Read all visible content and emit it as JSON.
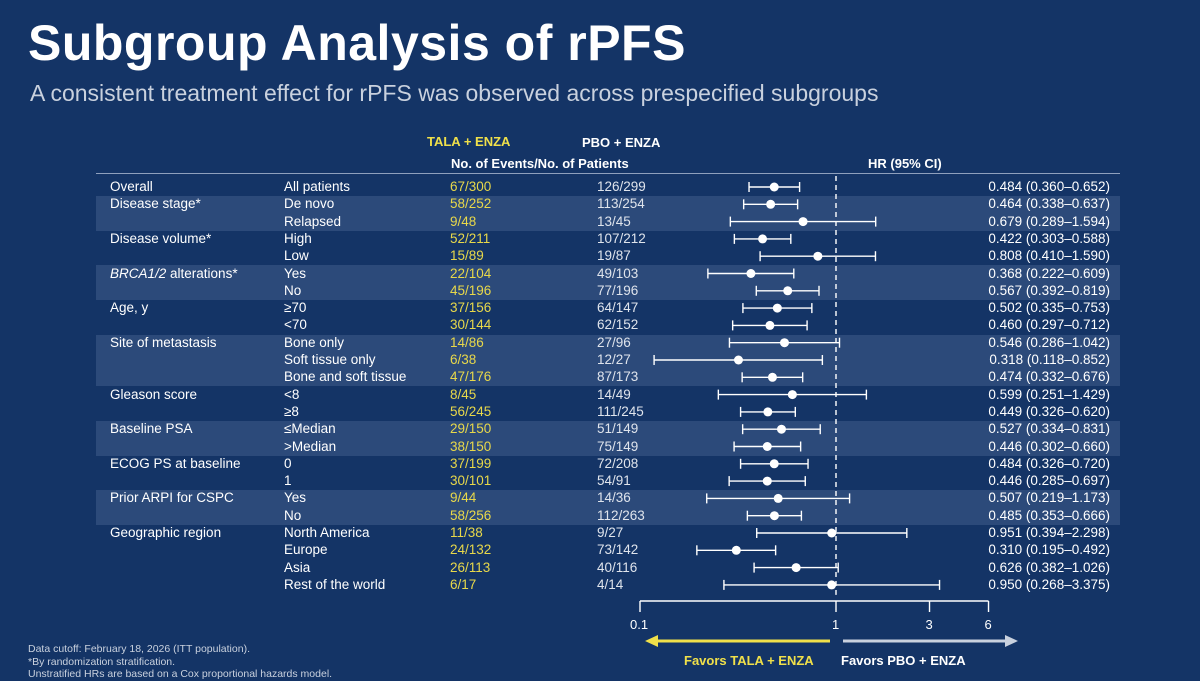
{
  "title": "Subgroup Analysis of rPFS",
  "subtitle": "A consistent treatment effect for rPFS was observed across prespecified subgroups",
  "headers": {
    "tala": "TALA + ENZA",
    "pbo": "PBO + ENZA",
    "events": "No. of Events/No. of Patients",
    "hr": "HR (95% CI)"
  },
  "colors": {
    "background": "#143466",
    "band": "#2c4a7a",
    "tala_yellow": "#e8d84a",
    "marker": "#ffffff"
  },
  "chart_data": {
    "type": "forest",
    "x_scale": "log",
    "xlim": [
      0.1,
      6
    ],
    "x_ticks": [
      "0.1",
      "1",
      "3",
      "6"
    ],
    "reference_line": 1,
    "rows": [
      {
        "subgroup": "Overall",
        "category": "All patients",
        "tala": "67/300",
        "pbo": "126/299",
        "hr": 0.484,
        "lo": 0.36,
        "hi": 0.652,
        "label": "0.484 (0.360–0.652)",
        "band": false
      },
      {
        "subgroup": "Disease stage*",
        "category": "De novo",
        "tala": "58/252",
        "pbo": "113/254",
        "hr": 0.464,
        "lo": 0.338,
        "hi": 0.637,
        "label": "0.464 (0.338–0.637)",
        "band": true
      },
      {
        "subgroup": "",
        "category": "Relapsed",
        "tala": "9/48",
        "pbo": "13/45",
        "hr": 0.679,
        "lo": 0.289,
        "hi": 1.594,
        "label": "0.679 (0.289–1.594)",
        "band": true
      },
      {
        "subgroup": "Disease volume*",
        "category": "High",
        "tala": "52/211",
        "pbo": "107/212",
        "hr": 0.422,
        "lo": 0.303,
        "hi": 0.588,
        "label": "0.422 (0.303–0.588)",
        "band": false
      },
      {
        "subgroup": "",
        "category": "Low",
        "tala": "15/89",
        "pbo": "19/87",
        "hr": 0.808,
        "lo": 0.41,
        "hi": 1.59,
        "label": "0.808 (0.410–1.590)",
        "band": false
      },
      {
        "subgroup": "BRCA1/2 alterations*",
        "category": "Yes",
        "tala": "22/104",
        "pbo": "49/103",
        "hr": 0.368,
        "lo": 0.222,
        "hi": 0.609,
        "label": "0.368 (0.222–0.609)",
        "band": true,
        "italic": true
      },
      {
        "subgroup": "",
        "category": "No",
        "tala": "45/196",
        "pbo": "77/196",
        "hr": 0.567,
        "lo": 0.392,
        "hi": 0.819,
        "label": "0.567 (0.392–0.819)",
        "band": true
      },
      {
        "subgroup": "Age, y",
        "category": "≥70",
        "tala": "37/156",
        "pbo": "64/147",
        "hr": 0.502,
        "lo": 0.335,
        "hi": 0.753,
        "label": "0.502 (0.335–0.753)",
        "band": false
      },
      {
        "subgroup": "",
        "category": "<70",
        "tala": "30/144",
        "pbo": "62/152",
        "hr": 0.46,
        "lo": 0.297,
        "hi": 0.712,
        "label": "0.460 (0.297–0.712)",
        "band": false
      },
      {
        "subgroup": "Site of metastasis",
        "category": "Bone only",
        "tala": "14/86",
        "pbo": "27/96",
        "hr": 0.546,
        "lo": 0.286,
        "hi": 1.042,
        "label": "0.546 (0.286–1.042)",
        "band": true
      },
      {
        "subgroup": "",
        "category": "Soft tissue only",
        "tala": "6/38",
        "pbo": "12/27",
        "hr": 0.318,
        "lo": 0.118,
        "hi": 0.852,
        "label": "0.318 (0.118–0.852)",
        "band": true
      },
      {
        "subgroup": "",
        "category": "Bone and soft tissue",
        "tala": "47/176",
        "pbo": "87/173",
        "hr": 0.474,
        "lo": 0.332,
        "hi": 0.676,
        "label": "0.474 (0.332–0.676)",
        "band": true
      },
      {
        "subgroup": "Gleason score",
        "category": "<8",
        "tala": "8/45",
        "pbo": "14/49",
        "hr": 0.599,
        "lo": 0.251,
        "hi": 1.429,
        "label": "0.599 (0.251–1.429)",
        "band": false
      },
      {
        "subgroup": "",
        "category": "≥8",
        "tala": "56/245",
        "pbo": "111/245",
        "hr": 0.449,
        "lo": 0.326,
        "hi": 0.62,
        "label": "0.449 (0.326–0.620)",
        "band": false
      },
      {
        "subgroup": "Baseline PSA",
        "category": "≤Median",
        "tala": "29/150",
        "pbo": "51/149",
        "hr": 0.527,
        "lo": 0.334,
        "hi": 0.831,
        "label": "0.527 (0.334–0.831)",
        "band": true
      },
      {
        "subgroup": "",
        "category": ">Median",
        "tala": "38/150",
        "pbo": "75/149",
        "hr": 0.446,
        "lo": 0.302,
        "hi": 0.66,
        "label": "0.446 (0.302–0.660)",
        "band": true
      },
      {
        "subgroup": "ECOG PS at baseline",
        "category": "0",
        "tala": "37/199",
        "pbo": "72/208",
        "hr": 0.484,
        "lo": 0.326,
        "hi": 0.72,
        "label": "0.484 (0.326–0.720)",
        "band": false
      },
      {
        "subgroup": "",
        "category": "1",
        "tala": "30/101",
        "pbo": "54/91",
        "hr": 0.446,
        "lo": 0.285,
        "hi": 0.697,
        "label": "0.446 (0.285–0.697)",
        "band": false
      },
      {
        "subgroup": "Prior ARPI for CSPC",
        "category": "Yes",
        "tala": "9/44",
        "pbo": "14/36",
        "hr": 0.507,
        "lo": 0.219,
        "hi": 1.173,
        "label": "0.507 (0.219–1.173)",
        "band": true
      },
      {
        "subgroup": "",
        "category": "No",
        "tala": "58/256",
        "pbo": "112/263",
        "hr": 0.485,
        "lo": 0.353,
        "hi": 0.666,
        "label": "0.485 (0.353–0.666)",
        "band": true
      },
      {
        "subgroup": "Geographic region",
        "category": "North America",
        "tala": "11/38",
        "pbo": "9/27",
        "hr": 0.951,
        "lo": 0.394,
        "hi": 2.298,
        "label": "0.951 (0.394–2.298)",
        "band": false
      },
      {
        "subgroup": "",
        "category": "Europe",
        "tala": "24/132",
        "pbo": "73/142",
        "hr": 0.31,
        "lo": 0.195,
        "hi": 0.492,
        "label": "0.310 (0.195–0.492)",
        "band": false
      },
      {
        "subgroup": "",
        "category": "Asia",
        "tala": "26/113",
        "pbo": "40/116",
        "hr": 0.626,
        "lo": 0.382,
        "hi": 1.026,
        "label": "0.626 (0.382–1.026)",
        "band": false
      },
      {
        "subgroup": "",
        "category": "Rest of the world",
        "tala": "6/17",
        "pbo": "4/14",
        "hr": 0.95,
        "lo": 0.268,
        "hi": 3.375,
        "label": "0.950 (0.268–3.375)",
        "band": false
      }
    ]
  },
  "favors": {
    "left": "Favors TALA + ENZA",
    "right": "Favors PBO + ENZA"
  },
  "footnotes": [
    "Data cutoff: February 18, 2026 (ITT population).",
    "*By randomization stratification.",
    "Unstratified HRs are based on a Cox proportional hazards model."
  ]
}
